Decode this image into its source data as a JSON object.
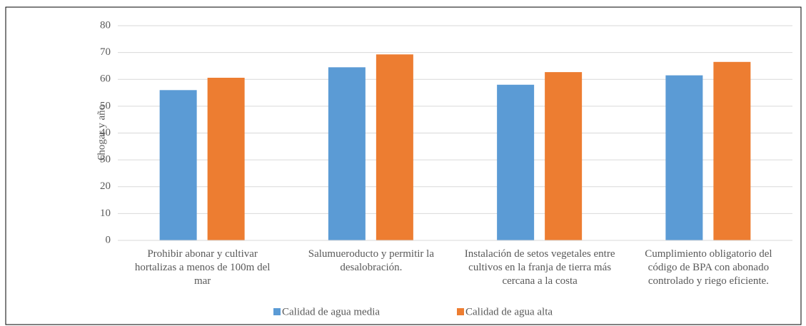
{
  "chart_data": {
    "type": "bar",
    "y_label": "€hogar y año",
    "categories": [
      "Prohibir abonar y cultivar hortalizas a menos de 100m del mar",
      "Salumueroducto y permitir la desalobración.",
      "Instalación de setos vegetales entre cultivos en la franja de tierra más cercana a la costa",
      "Cumplimiento obligatorio del código de BPA con abonado controlado y riego eficiente."
    ],
    "series": [
      {
        "name": "Calidad de agua media",
        "color": "#5b9bd5",
        "values": [
          56,
          64.5,
          58,
          61.5
        ]
      },
      {
        "name": "Calidad de agua alta",
        "color": "#ed7d31",
        "values": [
          60.6,
          69.3,
          62.7,
          66.5
        ]
      }
    ],
    "ylim": [
      0,
      80
    ],
    "yticks": [
      0,
      10,
      20,
      30,
      40,
      50,
      60,
      70,
      80
    ],
    "grid": true,
    "legend": "bottom"
  }
}
